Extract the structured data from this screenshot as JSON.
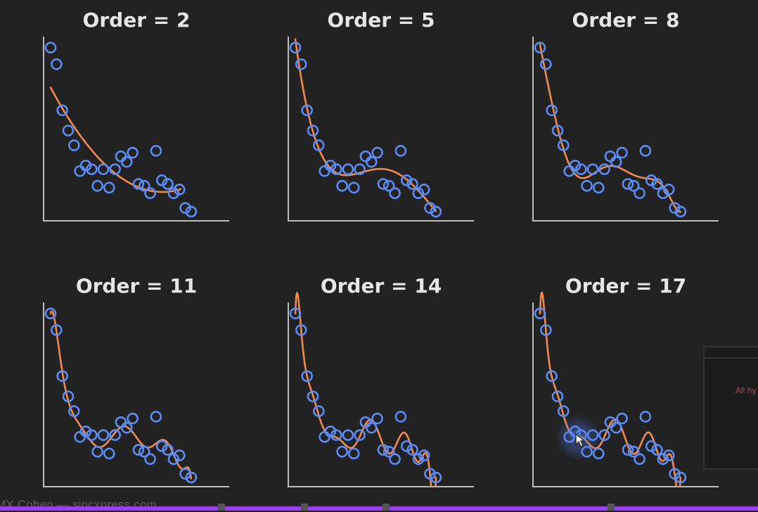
{
  "chart_data": [
    {
      "type": "scatter",
      "title": "Order = 2",
      "x": [
        1,
        2,
        3,
        4,
        5,
        6,
        7,
        8,
        9,
        10,
        11,
        12,
        13,
        14,
        15,
        16,
        17,
        18,
        19,
        20,
        21,
        22,
        23,
        24,
        25
      ],
      "y": [
        0.94,
        0.85,
        0.6,
        0.49,
        0.41,
        0.27,
        0.3,
        0.28,
        0.19,
        0.28,
        0.18,
        0.28,
        0.35,
        0.32,
        0.37,
        0.2,
        0.19,
        0.15,
        0.38,
        0.22,
        0.2,
        0.15,
        0.17,
        0.07,
        0.05
      ],
      "fit": {
        "order": 2,
        "x_end": 23.2
      },
      "xlim": [
        -0.2,
        31.5
      ],
      "ylim": [
        0,
        1.0
      ]
    },
    {
      "type": "scatter",
      "title": "Order = 5",
      "x": [
        1,
        2,
        3,
        4,
        5,
        6,
        7,
        8,
        9,
        10,
        11,
        12,
        13,
        14,
        15,
        16,
        17,
        18,
        19,
        20,
        21,
        22,
        23,
        24,
        25
      ],
      "y": [
        0.94,
        0.85,
        0.6,
        0.49,
        0.41,
        0.27,
        0.3,
        0.28,
        0.19,
        0.28,
        0.18,
        0.28,
        0.35,
        0.32,
        0.37,
        0.2,
        0.19,
        0.15,
        0.38,
        0.22,
        0.2,
        0.15,
        0.17,
        0.07,
        0.05
      ],
      "fit": {
        "order": 5
      },
      "xlim": [
        -0.2,
        31.5
      ],
      "ylim": [
        0,
        1.0
      ]
    },
    {
      "type": "scatter",
      "title": "Order = 8",
      "x": [
        1,
        2,
        3,
        4,
        5,
        6,
        7,
        8,
        9,
        10,
        11,
        12,
        13,
        14,
        15,
        16,
        17,
        18,
        19,
        20,
        21,
        22,
        23,
        24,
        25
      ],
      "y": [
        0.94,
        0.85,
        0.6,
        0.49,
        0.41,
        0.27,
        0.3,
        0.28,
        0.19,
        0.28,
        0.18,
        0.28,
        0.35,
        0.32,
        0.37,
        0.2,
        0.19,
        0.15,
        0.38,
        0.22,
        0.2,
        0.15,
        0.17,
        0.07,
        0.05
      ],
      "fit": {
        "order": 8
      },
      "xlim": [
        -0.2,
        31.5
      ],
      "ylim": [
        0,
        1.0
      ]
    },
    {
      "type": "scatter",
      "title": "Order = 11",
      "x": [
        1,
        2,
        3,
        4,
        5,
        6,
        7,
        8,
        9,
        10,
        11,
        12,
        13,
        14,
        15,
        16,
        17,
        18,
        19,
        20,
        21,
        22,
        23,
        24,
        25
      ],
      "y": [
        0.94,
        0.85,
        0.6,
        0.49,
        0.41,
        0.27,
        0.3,
        0.28,
        0.19,
        0.28,
        0.18,
        0.28,
        0.35,
        0.32,
        0.37,
        0.2,
        0.19,
        0.15,
        0.38,
        0.22,
        0.2,
        0.15,
        0.17,
        0.07,
        0.05
      ],
      "fit": {
        "order": 11
      },
      "xlim": [
        -0.2,
        31.5
      ],
      "ylim": [
        0,
        1.0
      ]
    },
    {
      "type": "scatter",
      "title": "Order = 14",
      "x": [
        1,
        2,
        3,
        4,
        5,
        6,
        7,
        8,
        9,
        10,
        11,
        12,
        13,
        14,
        15,
        16,
        17,
        18,
        19,
        20,
        21,
        22,
        23,
        24,
        25
      ],
      "y": [
        0.94,
        0.85,
        0.6,
        0.49,
        0.41,
        0.27,
        0.3,
        0.28,
        0.19,
        0.28,
        0.18,
        0.28,
        0.35,
        0.32,
        0.37,
        0.2,
        0.19,
        0.15,
        0.38,
        0.22,
        0.2,
        0.15,
        0.17,
        0.07,
        0.05
      ],
      "fit": {
        "order": 14
      },
      "xlim": [
        -0.2,
        31.5
      ],
      "ylim": [
        0,
        1.0
      ]
    },
    {
      "type": "scatter",
      "title": "Order = 17",
      "x": [
        1,
        2,
        3,
        4,
        5,
        6,
        7,
        8,
        9,
        10,
        11,
        12,
        13,
        14,
        15,
        16,
        17,
        18,
        19,
        20,
        21,
        22,
        23,
        24,
        25
      ],
      "y": [
        0.94,
        0.85,
        0.6,
        0.49,
        0.41,
        0.27,
        0.3,
        0.28,
        0.19,
        0.28,
        0.18,
        0.28,
        0.35,
        0.32,
        0.37,
        0.2,
        0.19,
        0.15,
        0.38,
        0.22,
        0.2,
        0.15,
        0.17,
        0.07,
        0.05
      ],
      "fit": {
        "order": 17
      },
      "xlim": [
        -0.2,
        31.5
      ],
      "ylim": [
        0,
        1.0
      ]
    }
  ],
  "watermark": "MX Cohen — sincxpress.com",
  "side_panel_text": "All hy",
  "video_progress": 1.0,
  "colors": {
    "points": "#5b8cf5",
    "fit": "#f08a4b",
    "axes": "#bdbdbd",
    "title": "#e6e6e6",
    "progress": "#9b3df0"
  }
}
